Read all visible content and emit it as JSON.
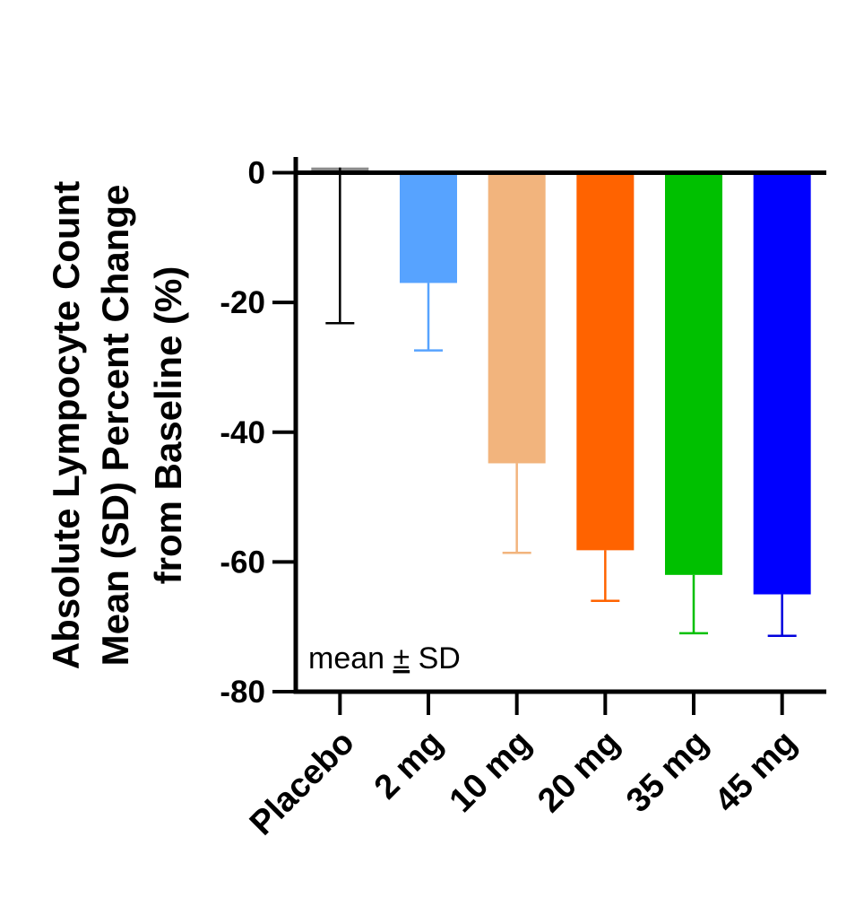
{
  "chart_data": {
    "type": "bar",
    "title": "",
    "categories": [
      "Placebo",
      "2 mg",
      "10 mg",
      "20 mg",
      "35 mg",
      "45 mg"
    ],
    "values": [
      0.8,
      -17.0,
      -44.8,
      -58.2,
      -62.0,
      -65.0
    ],
    "error_sd": [
      24.0,
      10.4,
      13.8,
      7.8,
      9.0,
      6.4
    ],
    "colors": [
      "#8c8c8c",
      "#57a3ff",
      "#f2b47d",
      "#ff6300",
      "#00c000",
      "#0000ff"
    ],
    "error_colors": [
      "#000000",
      "#57a3ff",
      "#f2b47d",
      "#ff6300",
      "#00c000",
      "#0000dd"
    ],
    "ylabel_lines": [
      "Absolute Lympocyte Count",
      "Mean (SD) Percent Change",
      "from Baseline (%)"
    ],
    "xlabel": "",
    "ylim": [
      -80,
      2
    ],
    "yticks": [
      0,
      -20,
      -40,
      -60,
      -80
    ],
    "ytick_labels": [
      "0",
      "-20",
      "-40",
      "-60",
      "-80"
    ],
    "annotation": {
      "prefix": "mean ",
      "symbol": "±",
      "suffix": " SD"
    },
    "grid": false,
    "legend": "none"
  }
}
